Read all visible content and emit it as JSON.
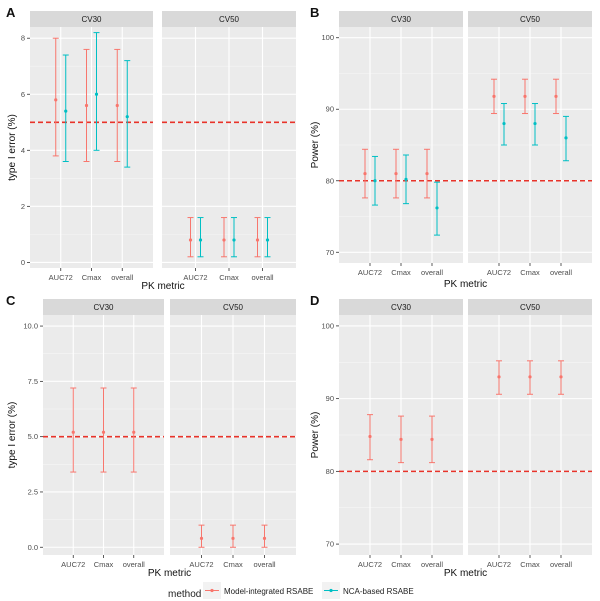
{
  "legend": {
    "title": "method",
    "items": [
      {
        "label": "Model-integrated RSABE",
        "color": "#F8766D"
      },
      {
        "label": "NCA-based RSABE",
        "color": "#00BFC4"
      }
    ]
  },
  "chart_data": [
    {
      "panel": "A",
      "type": "scatter",
      "title": "",
      "xlabel": "PK metric",
      "ylabel": "type I error (%)",
      "ylim": [
        -0.2,
        8.4
      ],
      "yticks": [
        0,
        2,
        4,
        6,
        8
      ],
      "categories": [
        "AUC72",
        "Cmax",
        "overall"
      ],
      "reference_line": 5,
      "facets": [
        {
          "label": "CV30",
          "series": [
            {
              "name": "Model-integrated RSABE",
              "values": [
                5.8,
                5.6,
                5.6
              ],
              "lower": [
                3.8,
                3.6,
                3.6
              ],
              "upper": [
                8.0,
                7.6,
                7.6
              ]
            },
            {
              "name": "NCA-based RSABE",
              "values": [
                5.4,
                6.0,
                5.2
              ],
              "lower": [
                3.6,
                4.0,
                3.4
              ],
              "upper": [
                7.4,
                8.2,
                7.2
              ]
            }
          ]
        },
        {
          "label": "CV50",
          "series": [
            {
              "name": "Model-integrated RSABE",
              "values": [
                0.8,
                0.8,
                0.8
              ],
              "lower": [
                0.2,
                0.2,
                0.2
              ],
              "upper": [
                1.6,
                1.6,
                1.6
              ]
            },
            {
              "name": "NCA-based RSABE",
              "values": [
                0.8,
                0.8,
                0.8
              ],
              "lower": [
                0.2,
                0.2,
                0.2
              ],
              "upper": [
                1.6,
                1.6,
                1.6
              ]
            }
          ]
        }
      ]
    },
    {
      "panel": "B",
      "type": "scatter",
      "title": "",
      "xlabel": "PK metric",
      "ylabel": "Power (%)",
      "ylim": [
        68.5,
        101.5
      ],
      "yticks": [
        70,
        80,
        90,
        100
      ],
      "categories": [
        "AUC72",
        "Cmax",
        "overall"
      ],
      "reference_line": 80,
      "facets": [
        {
          "label": "CV30",
          "series": [
            {
              "name": "Model-integrated RSABE",
              "values": [
                81.0,
                81.0,
                81.0
              ],
              "lower": [
                77.6,
                77.6,
                77.6
              ],
              "upper": [
                84.4,
                84.4,
                84.4
              ]
            },
            {
              "name": "NCA-based RSABE",
              "values": [
                80.0,
                80.2,
                76.2
              ],
              "lower": [
                76.6,
                76.8,
                72.4
              ],
              "upper": [
                83.4,
                83.6,
                79.8
              ]
            }
          ]
        },
        {
          "label": "CV50",
          "series": [
            {
              "name": "Model-integrated RSABE",
              "values": [
                91.8,
                91.8,
                91.8
              ],
              "lower": [
                89.4,
                89.4,
                89.4
              ],
              "upper": [
                94.2,
                94.2,
                94.2
              ]
            },
            {
              "name": "NCA-based RSABE",
              "values": [
                88.0,
                88.0,
                86.0
              ],
              "lower": [
                85.0,
                85.0,
                82.8
              ],
              "upper": [
                90.8,
                90.8,
                89.0
              ]
            }
          ]
        }
      ]
    },
    {
      "panel": "C",
      "type": "scatter",
      "title": "",
      "xlabel": "PK metric",
      "ylabel": "type I error (%)",
      "ylim": [
        -0.35,
        10.5
      ],
      "yticks": [
        0.0,
        2.5,
        5.0,
        7.5,
        10.0
      ],
      "categories": [
        "AUC72",
        "Cmax",
        "overall"
      ],
      "reference_line": 5,
      "facets": [
        {
          "label": "CV30",
          "series": [
            {
              "name": "Model-integrated RSABE",
              "values": [
                5.2,
                5.2,
                5.2
              ],
              "lower": [
                3.4,
                3.4,
                3.4
              ],
              "upper": [
                7.2,
                7.2,
                7.2
              ]
            }
          ]
        },
        {
          "label": "CV50",
          "series": [
            {
              "name": "Model-integrated RSABE",
              "values": [
                0.4,
                0.4,
                0.4
              ],
              "lower": [
                0.0,
                0.0,
                0.0
              ],
              "upper": [
                1.0,
                1.0,
                1.0
              ]
            }
          ]
        }
      ]
    },
    {
      "panel": "D",
      "type": "scatter",
      "title": "",
      "xlabel": "PK metric",
      "ylabel": "Power (%)",
      "ylim": [
        68.5,
        101.5
      ],
      "yticks": [
        70,
        80,
        90,
        100
      ],
      "categories": [
        "AUC72",
        "Cmax",
        "overall"
      ],
      "reference_line": 80,
      "facets": [
        {
          "label": "CV30",
          "series": [
            {
              "name": "Model-integrated RSABE",
              "values": [
                84.8,
                84.4,
                84.4
              ],
              "lower": [
                81.6,
                81.2,
                81.2
              ],
              "upper": [
                87.8,
                87.6,
                87.6
              ]
            }
          ]
        },
        {
          "label": "CV50",
          "series": [
            {
              "name": "Model-integrated RSABE",
              "values": [
                93.0,
                93.0,
                93.0
              ],
              "lower": [
                90.6,
                90.6,
                90.6
              ],
              "upper": [
                95.2,
                95.2,
                95.2
              ]
            }
          ]
        }
      ]
    }
  ]
}
